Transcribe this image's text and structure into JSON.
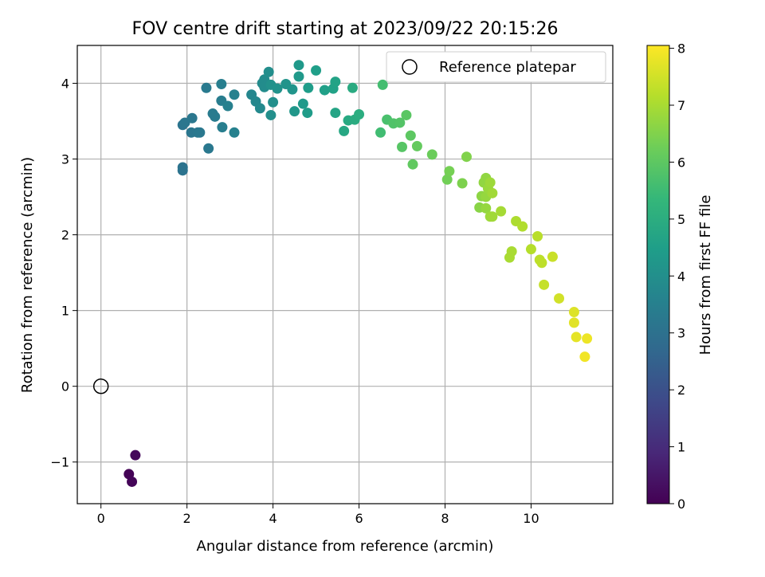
{
  "chart_data": {
    "type": "scatter",
    "title": "FOV centre drift starting at 2023/09/22 20:15:26",
    "xlabel": "Angular distance from reference (arcmin)",
    "ylabel": "Rotation from reference (arcmin)",
    "xlim": [
      -0.55,
      11.9
    ],
    "ylim": [
      -1.55,
      4.5
    ],
    "xticks": [
      0,
      2,
      4,
      6,
      8,
      10
    ],
    "yticks": [
      -1,
      0,
      1,
      2,
      3,
      4
    ],
    "xtick_labels": [
      "0",
      "2",
      "4",
      "6",
      "8",
      "10"
    ],
    "ytick_labels": [
      "−1",
      "0",
      "1",
      "2",
      "3",
      "4"
    ],
    "grid": true,
    "legend": {
      "position": "top-right",
      "entries": [
        "Reference platepar"
      ]
    },
    "colorbar": {
      "label": "Hours from first FF file",
      "min": 0,
      "max": 8.05,
      "ticks": [
        0,
        1,
        2,
        3,
        4,
        5,
        6,
        7,
        8
      ],
      "tick_labels": [
        "0",
        "1",
        "2",
        "3",
        "4",
        "5",
        "6",
        "7",
        "8"
      ],
      "colormap": "viridis",
      "colors": [
        "#440154",
        "#482878",
        "#3e4989",
        "#31688e",
        "#26828e",
        "#1f9e89",
        "#35b779",
        "#6ece58",
        "#b5de2b",
        "#fde725"
      ]
    },
    "reference_point": {
      "name": "Reference platepar",
      "x": 0,
      "y": 0
    },
    "points": [
      {
        "x": 0.65,
        "y": -1.16,
        "h": 0.05
      },
      {
        "x": 0.72,
        "y": -1.26,
        "h": 0.1
      },
      {
        "x": 0.8,
        "y": -0.91,
        "h": 0.15
      },
      {
        "x": 1.9,
        "y": 2.85,
        "h": 3.05
      },
      {
        "x": 1.9,
        "y": 2.89,
        "h": 3.05
      },
      {
        "x": 1.9,
        "y": 3.45,
        "h": 3.1
      },
      {
        "x": 1.95,
        "y": 3.48,
        "h": 3.15
      },
      {
        "x": 2.1,
        "y": 3.35,
        "h": 3.15
      },
      {
        "x": 2.12,
        "y": 3.54,
        "h": 3.2
      },
      {
        "x": 2.25,
        "y": 3.35,
        "h": 3.2
      },
      {
        "x": 2.3,
        "y": 3.35,
        "h": 3.25
      },
      {
        "x": 2.5,
        "y": 3.14,
        "h": 3.25
      },
      {
        "x": 2.45,
        "y": 3.94,
        "h": 3.3
      },
      {
        "x": 2.6,
        "y": 3.6,
        "h": 3.35
      },
      {
        "x": 2.65,
        "y": 3.56,
        "h": 3.35
      },
      {
        "x": 2.8,
        "y": 3.77,
        "h": 3.4
      },
      {
        "x": 2.8,
        "y": 3.99,
        "h": 3.45
      },
      {
        "x": 2.82,
        "y": 3.42,
        "h": 3.45
      },
      {
        "x": 2.95,
        "y": 3.7,
        "h": 3.5
      },
      {
        "x": 3.1,
        "y": 3.35,
        "h": 3.55
      },
      {
        "x": 3.1,
        "y": 3.85,
        "h": 3.55
      },
      {
        "x": 3.5,
        "y": 3.85,
        "h": 3.7
      },
      {
        "x": 3.6,
        "y": 3.76,
        "h": 3.75
      },
      {
        "x": 3.7,
        "y": 3.67,
        "h": 3.8
      },
      {
        "x": 3.75,
        "y": 4.0,
        "h": 3.85
      },
      {
        "x": 3.8,
        "y": 4.05,
        "h": 3.9
      },
      {
        "x": 3.8,
        "y": 3.95,
        "h": 3.9
      },
      {
        "x": 3.9,
        "y": 4.15,
        "h": 3.95
      },
      {
        "x": 3.95,
        "y": 3.58,
        "h": 4.0
      },
      {
        "x": 4.0,
        "y": 3.75,
        "h": 4.0
      },
      {
        "x": 3.95,
        "y": 3.98,
        "h": 4.05
      },
      {
        "x": 4.1,
        "y": 3.93,
        "h": 4.1
      },
      {
        "x": 4.3,
        "y": 3.99,
        "h": 4.15
      },
      {
        "x": 4.45,
        "y": 3.92,
        "h": 4.2
      },
      {
        "x": 4.5,
        "y": 3.63,
        "h": 4.25
      },
      {
        "x": 4.6,
        "y": 4.09,
        "h": 4.3
      },
      {
        "x": 4.6,
        "y": 4.24,
        "h": 4.3
      },
      {
        "x": 4.7,
        "y": 3.73,
        "h": 4.35
      },
      {
        "x": 4.8,
        "y": 3.61,
        "h": 4.4
      },
      {
        "x": 4.82,
        "y": 3.94,
        "h": 4.45
      },
      {
        "x": 5.0,
        "y": 4.17,
        "h": 4.5
      },
      {
        "x": 5.2,
        "y": 3.91,
        "h": 4.55
      },
      {
        "x": 5.4,
        "y": 3.93,
        "h": 4.6
      },
      {
        "x": 5.45,
        "y": 4.02,
        "h": 4.65
      },
      {
        "x": 5.45,
        "y": 3.61,
        "h": 4.7
      },
      {
        "x": 5.65,
        "y": 3.37,
        "h": 4.8
      },
      {
        "x": 5.75,
        "y": 3.51,
        "h": 4.85
      },
      {
        "x": 5.85,
        "y": 3.94,
        "h": 4.9
      },
      {
        "x": 5.9,
        "y": 3.52,
        "h": 4.95
      },
      {
        "x": 6.0,
        "y": 3.59,
        "h": 5.0
      },
      {
        "x": 6.5,
        "y": 3.35,
        "h": 5.55
      },
      {
        "x": 6.55,
        "y": 3.98,
        "h": 5.6
      },
      {
        "x": 6.65,
        "y": 3.52,
        "h": 5.7
      },
      {
        "x": 6.8,
        "y": 3.47,
        "h": 5.8
      },
      {
        "x": 6.95,
        "y": 3.48,
        "h": 5.85
      },
      {
        "x": 7.0,
        "y": 3.16,
        "h": 5.9
      },
      {
        "x": 7.1,
        "y": 3.58,
        "h": 5.95
      },
      {
        "x": 7.2,
        "y": 3.31,
        "h": 6.0
      },
      {
        "x": 7.25,
        "y": 2.93,
        "h": 6.05
      },
      {
        "x": 7.35,
        "y": 3.17,
        "h": 6.1
      },
      {
        "x": 7.7,
        "y": 3.06,
        "h": 6.2
      },
      {
        "x": 8.05,
        "y": 2.73,
        "h": 6.3
      },
      {
        "x": 8.1,
        "y": 2.84,
        "h": 6.35
      },
      {
        "x": 8.4,
        "y": 2.68,
        "h": 6.45
      },
      {
        "x": 8.5,
        "y": 3.03,
        "h": 6.5
      },
      {
        "x": 8.8,
        "y": 2.36,
        "h": 6.6
      },
      {
        "x": 8.85,
        "y": 2.51,
        "h": 6.65
      },
      {
        "x": 8.9,
        "y": 2.69,
        "h": 6.7
      },
      {
        "x": 8.95,
        "y": 2.75,
        "h": 6.7
      },
      {
        "x": 8.95,
        "y": 2.5,
        "h": 6.75
      },
      {
        "x": 8.95,
        "y": 2.35,
        "h": 6.75
      },
      {
        "x": 9.0,
        "y": 2.61,
        "h": 6.8
      },
      {
        "x": 9.05,
        "y": 2.24,
        "h": 6.85
      },
      {
        "x": 9.05,
        "y": 2.69,
        "h": 6.85
      },
      {
        "x": 9.1,
        "y": 2.55,
        "h": 6.9
      },
      {
        "x": 9.1,
        "y": 2.24,
        "h": 6.9
      },
      {
        "x": 9.3,
        "y": 2.31,
        "h": 6.95
      },
      {
        "x": 9.5,
        "y": 1.7,
        "h": 7.0
      },
      {
        "x": 9.55,
        "y": 1.78,
        "h": 7.0
      },
      {
        "x": 9.65,
        "y": 2.18,
        "h": 7.05
      },
      {
        "x": 9.8,
        "y": 2.11,
        "h": 7.1
      },
      {
        "x": 10.0,
        "y": 1.81,
        "h": 7.15
      },
      {
        "x": 10.15,
        "y": 1.98,
        "h": 7.2
      },
      {
        "x": 10.2,
        "y": 1.67,
        "h": 7.25
      },
      {
        "x": 10.25,
        "y": 1.63,
        "h": 7.25
      },
      {
        "x": 10.3,
        "y": 1.34,
        "h": 7.35
      },
      {
        "x": 10.5,
        "y": 1.71,
        "h": 7.4
      },
      {
        "x": 10.65,
        "y": 1.16,
        "h": 7.5
      },
      {
        "x": 11.0,
        "y": 0.98,
        "h": 7.65
      },
      {
        "x": 11.0,
        "y": 0.84,
        "h": 7.7
      },
      {
        "x": 11.05,
        "y": 0.65,
        "h": 7.75
      },
      {
        "x": 11.3,
        "y": 0.63,
        "h": 7.85
      },
      {
        "x": 11.25,
        "y": 0.39,
        "h": 7.9
      }
    ]
  }
}
